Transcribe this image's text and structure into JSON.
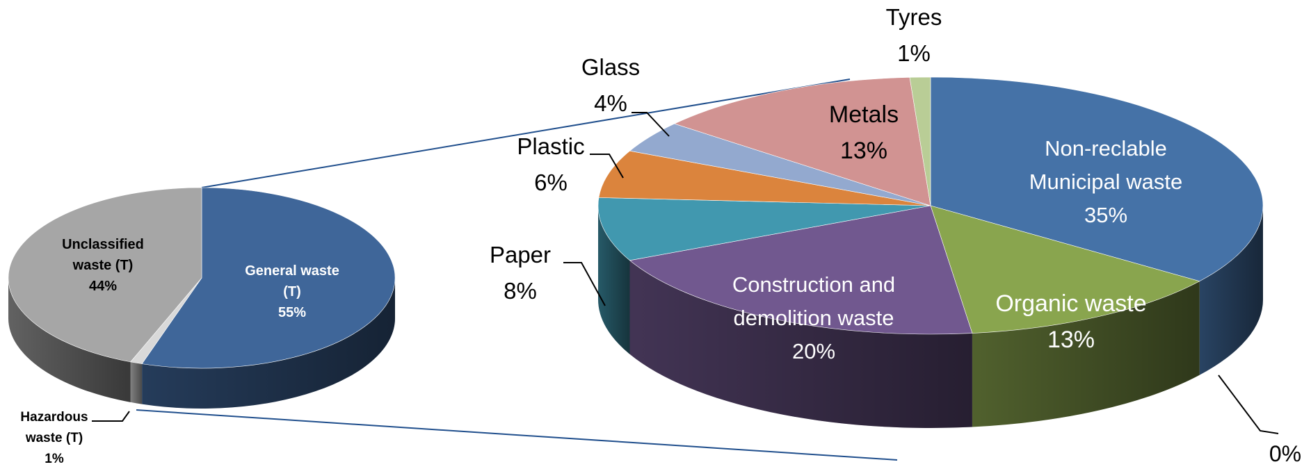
{
  "chart_data": [
    {
      "type": "pie",
      "style": "3d-exploded",
      "slices": [
        {
          "label": "General waste (T)",
          "value": 55,
          "display": [
            "General waste",
            "(T)",
            "55%"
          ],
          "color": "#3F6699"
        },
        {
          "label": "Hazardous waste (T)",
          "value": 1,
          "display": [
            "Hazardous",
            "waste (T)",
            "1%"
          ],
          "color": "#D9D9D9"
        },
        {
          "label": "Unclassified waste (T)",
          "value": 44,
          "display": [
            "Unclassified",
            "waste (T)",
            "44%"
          ],
          "color": "#A6A6A6"
        }
      ]
    },
    {
      "type": "pie",
      "style": "3d",
      "detail_of": "General waste (T)",
      "slices": [
        {
          "label": "Non-reclable Municipal waste",
          "value": 35,
          "display": [
            "Non-reclable",
            "Municipal waste",
            "35%"
          ],
          "color": "#4572A7"
        },
        {
          "label": "Organic waste",
          "value": 13,
          "display": [
            "Organic waste",
            "13%"
          ],
          "color": "#89A54E"
        },
        {
          "label": "",
          "value": 0,
          "display": [
            "0%"
          ],
          "color": "#556B2F"
        },
        {
          "label": "Construction and demolition waste",
          "value": 20,
          "display": [
            "Construction and",
            "demolition waste",
            "20%"
          ],
          "color": "#71588F"
        },
        {
          "label": "Paper",
          "value": 8,
          "display": [
            "Paper",
            "8%"
          ],
          "color": "#4198AF"
        },
        {
          "label": "Plastic",
          "value": 6,
          "display": [
            "Plastic",
            "6%"
          ],
          "color": "#DB843D"
        },
        {
          "label": "Glass",
          "value": 4,
          "display": [
            "Glass",
            "4%"
          ],
          "color": "#93A9CF"
        },
        {
          "label": "Metals",
          "value": 13,
          "display": [
            "Metals",
            "13%"
          ],
          "color": "#D19392"
        },
        {
          "label": "Tyres",
          "value": 1,
          "display": [
            "Tyres",
            "1%"
          ],
          "color": "#B9CD96"
        }
      ]
    }
  ]
}
